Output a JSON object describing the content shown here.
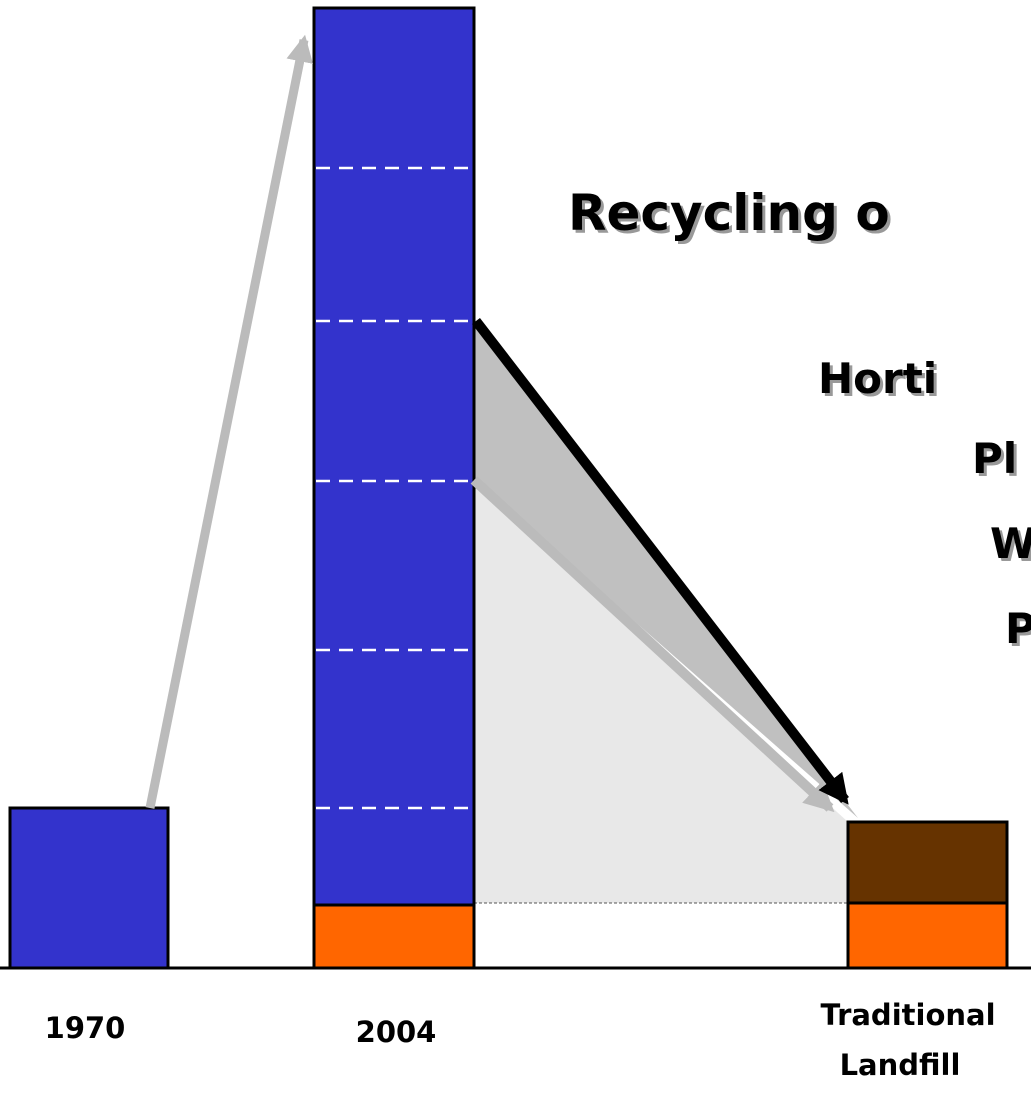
{
  "title": "Recycling o",
  "items": [
    "Horti",
    "Pl",
    "W",
    "P"
  ],
  "labels": {
    "first": "1970",
    "second": "2004",
    "third": [
      "Traditional",
      "Landfill"
    ]
  }
}
